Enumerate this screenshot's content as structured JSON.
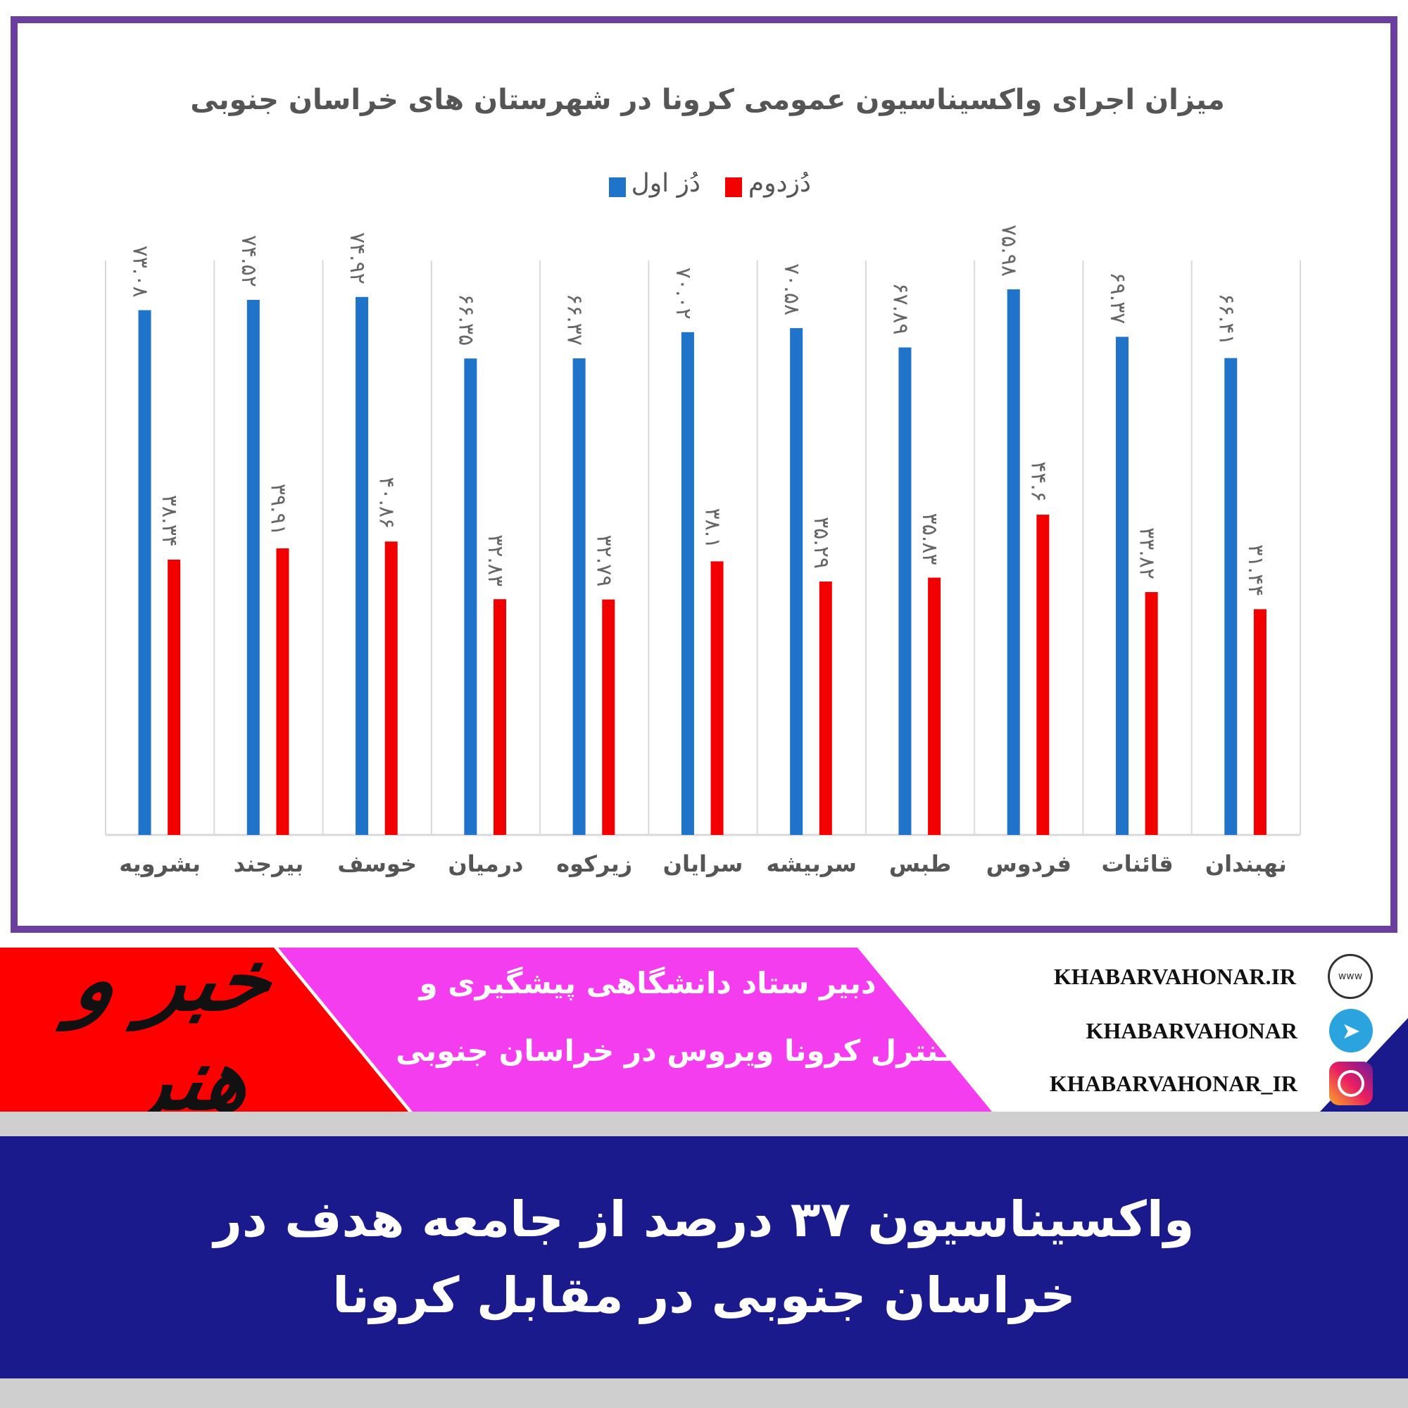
{
  "chart_data": {
    "type": "bar",
    "title": "میزان اجرای واکسیناسیون عمومی کرونا در شهرستان های خراسان جنوبی",
    "categories": [
      "بشرویه",
      "بیرجند",
      "خوسف",
      "درمیان",
      "زیرکوه",
      "سرایان",
      "سربیشه",
      "طبس",
      "فردوس",
      "قائنات",
      "نهبندان"
    ],
    "series": [
      {
        "name": "دُز اول",
        "color": "#1f73c8",
        "values": [
          73.08,
          74.52,
          74.92,
          66.35,
          66.37,
          70.02,
          70.58,
          67.89,
          75.98,
          69.37,
          66.41
        ],
        "labels": [
          "۷۳.۰۸",
          "۷۴.۵۲",
          "۷۴.۹۲",
          "۶۶.۳۵",
          "۶۶.۳۷",
          "۷۰.۰۲",
          "۷۰.۵۸",
          "۶۷.۸۹",
          "۷۵.۹۸",
          "۶۹.۳۷",
          "۶۶.۴۱"
        ]
      },
      {
        "name": "دُزدوم",
        "color": "#f20000",
        "values": [
          38.34,
          39.91,
          40.86,
          32.83,
          32.79,
          38.1,
          35.29,
          35.83,
          44.6,
          33.82,
          31.44
        ],
        "labels": [
          "۳۸.۳۴",
          "۳۹.۹۱",
          "۴۰.۸۶",
          "۳۲.۸۳",
          "۳۲.۷۹",
          "۳۸.۱",
          "۳۵.۲۹",
          "۳۵.۸۳",
          "۴۴.۶",
          "۳۳.۸۲",
          "۳۱.۴۴"
        ]
      }
    ],
    "ylim": [
      0,
      80
    ],
    "grid": "vertical category separators",
    "legend": "top-center"
  },
  "banner": {
    "logo": "خبر و هنر",
    "line1": "دبیر ستاد دانشگاهی پیشگیری و",
    "line2": "کنترل کرونا ویروس در خراسان جنوبی",
    "colors": {
      "red": "#ff0000",
      "pink": "#f53df0",
      "frame": "#6a3fa0",
      "navy": "#1a1a8c"
    }
  },
  "social": [
    {
      "icon": "globe-icon",
      "text": "KHABARVAHONAR.IR"
    },
    {
      "icon": "telegram-icon",
      "text": "KHABARVAHONAR"
    },
    {
      "icon": "instagram-icon",
      "text": "KHABARVAHONAR_IR"
    }
  ],
  "headline": {
    "line1": "واکسیناسیون ۳۷ درصد از جامعه هدف در",
    "line2": "خراسان جنوبی در مقابل کرونا"
  }
}
